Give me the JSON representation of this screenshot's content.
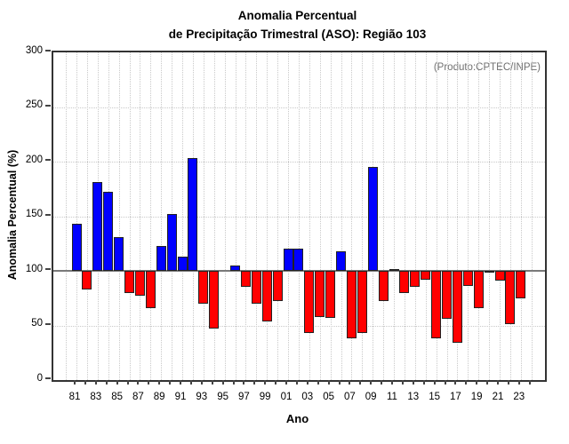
{
  "chart_data": {
    "type": "bar",
    "title_lines": [
      "Anomalia Percentual",
      "de Precipitação Trimestral (ASO): Região 103"
    ],
    "source_note": "(Produto:CPTEC/INPE)",
    "xlabel": "Ano",
    "ylabel": "Anomalia Percentual (%)",
    "ylim": [
      0,
      300
    ],
    "yticks": [
      0,
      50,
      100,
      150,
      200,
      250,
      300
    ],
    "baseline": 100,
    "grid": "dotted",
    "legend": "none",
    "bar_colors": {
      "above_baseline": "#0000ff",
      "below_baseline": "#ff0000"
    },
    "x_tick_labels": [
      "81",
      "83",
      "85",
      "87",
      "89",
      "91",
      "93",
      "95",
      "97",
      "99",
      "01",
      "03",
      "05",
      "07",
      "09",
      "11",
      "13",
      "15",
      "17",
      "19",
      "21",
      "23"
    ],
    "years": [
      1981,
      1982,
      1983,
      1984,
      1985,
      1986,
      1987,
      1988,
      1989,
      1990,
      1991,
      1992,
      1993,
      1994,
      1995,
      1996,
      1997,
      1998,
      1999,
      2000,
      2001,
      2002,
      2003,
      2004,
      2005,
      2006,
      2007,
      2008,
      2009,
      2010,
      2011,
      2012,
      2013,
      2014,
      2015,
      2016,
      2017,
      2018,
      2019,
      2020,
      2021,
      2022,
      2023
    ],
    "values": [
      143,
      83,
      181,
      172,
      131,
      80,
      77,
      66,
      123,
      152,
      113,
      203,
      70,
      47,
      100,
      105,
      85,
      70,
      54,
      72,
      120,
      120,
      43,
      58,
      57,
      118,
      38,
      43,
      195,
      72,
      102,
      80,
      85,
      92,
      38,
      56,
      34,
      86,
      66,
      98,
      91,
      51,
      75
    ]
  }
}
